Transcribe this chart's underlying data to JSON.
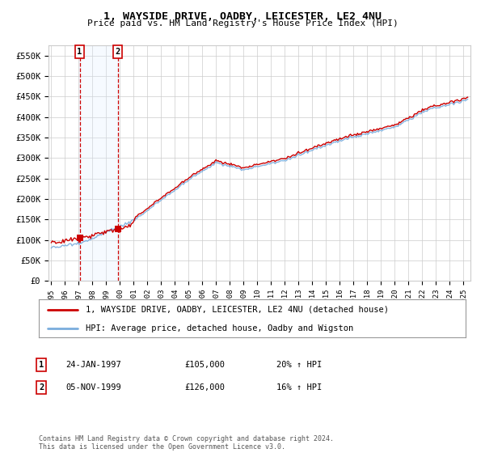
{
  "title": "1, WAYSIDE DRIVE, OADBY, LEICESTER, LE2 4NU",
  "subtitle": "Price paid vs. HM Land Registry's House Price Index (HPI)",
  "ylim": [
    0,
    575000
  ],
  "yticks": [
    0,
    50000,
    100000,
    150000,
    200000,
    250000,
    300000,
    350000,
    400000,
    450000,
    500000,
    550000
  ],
  "ytick_labels": [
    "£0",
    "£50K",
    "£100K",
    "£150K",
    "£200K",
    "£250K",
    "£300K",
    "£350K",
    "£400K",
    "£450K",
    "£500K",
    "£550K"
  ],
  "xlim_start": 1994.8,
  "xlim_end": 2025.5,
  "legend_label_red": "1, WAYSIDE DRIVE, OADBY, LEICESTER, LE2 4NU (detached house)",
  "legend_label_blue": "HPI: Average price, detached house, Oadby and Wigston",
  "transaction1_label": "1",
  "transaction1_date": "24-JAN-1997",
  "transaction1_price": "£105,000",
  "transaction1_hpi": "20% ↑ HPI",
  "transaction2_label": "2",
  "transaction2_date": "05-NOV-1999",
  "transaction2_price": "£126,000",
  "transaction2_hpi": "16% ↑ HPI",
  "footer": "Contains HM Land Registry data © Crown copyright and database right 2024.\nThis data is licensed under the Open Government Licence v3.0.",
  "transaction1_x": 1997.07,
  "transaction2_x": 1999.84,
  "price_t1": 105000,
  "price_t2": 126000,
  "color_red": "#cc0000",
  "color_blue": "#7aaddd",
  "color_vline": "#cc0000",
  "color_vspan": "#ddeeff",
  "background_color": "#ffffff",
  "grid_color": "#cccccc"
}
